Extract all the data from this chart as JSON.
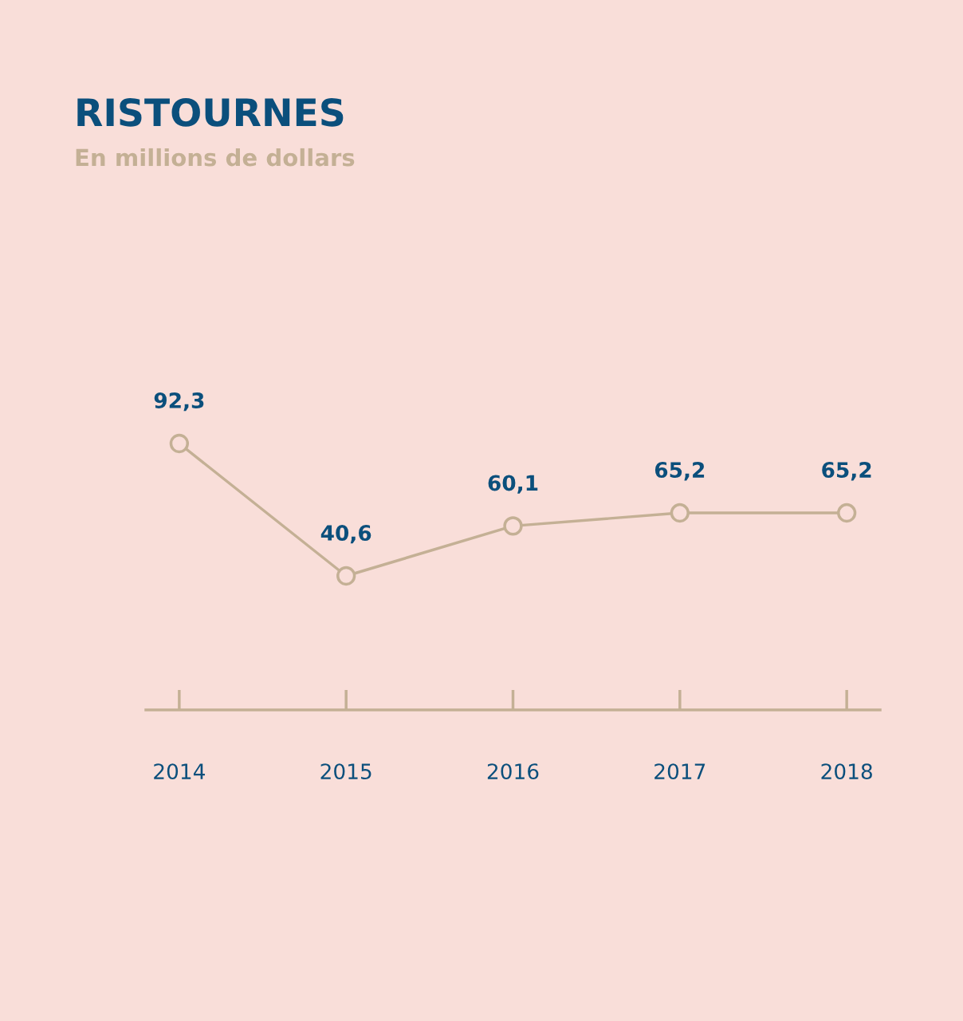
{
  "chart_data": {
    "type": "line",
    "title": "RISTOURNES",
    "subtitle": "En millions de dollars",
    "categories": [
      "2014",
      "2015",
      "2016",
      "2017",
      "2018"
    ],
    "series": [
      {
        "color": "#c4b095",
        "values": [
          92.3,
          40.6,
          60.1,
          65.2,
          65.2
        ],
        "value_labels": [
          "92,3",
          "40,6",
          "60,1",
          "65,2",
          "65,2"
        ]
      }
    ],
    "tick_labels": "x",
    "marker": "circle",
    "line_style": "solid",
    "grid": false,
    "legend": false
  }
}
